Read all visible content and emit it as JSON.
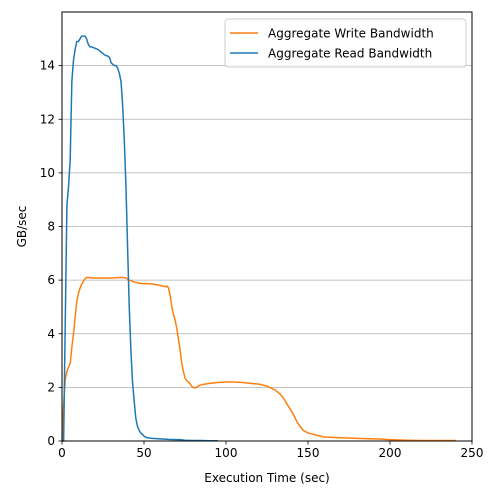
{
  "chart_data": {
    "type": "line",
    "title": "",
    "xlabel": "Execution Time (sec)",
    "ylabel": "GB/sec",
    "xlim": [
      0,
      250
    ],
    "ylim": [
      0,
      16
    ],
    "x_ticks": [
      0,
      50,
      100,
      150,
      200,
      250
    ],
    "y_ticks": [
      0,
      2,
      4,
      6,
      8,
      10,
      12,
      14
    ],
    "grid": "horizontal",
    "legend_position": "top-right",
    "series": [
      {
        "name": "Aggregate Write Bandwidth",
        "color": "#ff7f0e",
        "x": [
          0,
          1,
          2,
          3,
          5,
          6,
          7,
          8,
          9,
          10,
          11,
          12,
          13,
          14,
          15,
          16,
          17,
          18,
          20,
          25,
          30,
          35,
          38,
          40,
          41,
          42,
          43,
          44,
          45,
          47,
          50,
          55,
          60,
          63,
          64,
          65,
          66,
          67,
          68,
          69,
          70,
          71,
          72,
          73,
          74,
          75,
          76,
          77,
          78,
          79,
          80,
          81,
          82,
          83,
          85,
          90,
          95,
          100,
          105,
          110,
          115,
          120,
          125,
          130,
          133,
          135,
          137,
          139,
          141,
          143,
          145,
          147,
          150,
          155,
          160,
          170,
          180,
          190,
          195,
          200,
          210,
          220,
          230,
          240
        ],
        "y": [
          0,
          1.4,
          2.3,
          2.6,
          2.9,
          3.5,
          4.0,
          4.6,
          5.2,
          5.5,
          5.7,
          5.85,
          5.95,
          6.05,
          6.1,
          6.1,
          6.1,
          6.08,
          6.08,
          6.08,
          6.08,
          6.1,
          6.1,
          6.05,
          6.0,
          5.98,
          5.95,
          5.93,
          5.92,
          5.88,
          5.87,
          5.86,
          5.8,
          5.75,
          5.78,
          5.7,
          5.4,
          5.0,
          4.7,
          4.5,
          4.2,
          3.8,
          3.4,
          2.9,
          2.6,
          2.35,
          2.25,
          2.2,
          2.15,
          2.05,
          2.0,
          1.98,
          2.0,
          2.05,
          2.1,
          2.15,
          2.18,
          2.2,
          2.2,
          2.18,
          2.15,
          2.12,
          2.05,
          1.9,
          1.75,
          1.6,
          1.4,
          1.2,
          1.0,
          0.75,
          0.55,
          0.4,
          0.3,
          0.22,
          0.15,
          0.12,
          0.1,
          0.08,
          0.07,
          0.05,
          0.03,
          0.02,
          0.02,
          0.02
        ]
      },
      {
        "name": "Aggregate Read Bandwidth",
        "color": "#1f77b4",
        "x": [
          0,
          1,
          2,
          3,
          4,
          5,
          6,
          7,
          8,
          9,
          10,
          11,
          12,
          13,
          14,
          15,
          16,
          17,
          18,
          20,
          22,
          24,
          26,
          28,
          29,
          30,
          31,
          32,
          33,
          34,
          35,
          36,
          37,
          38,
          39,
          40,
          41,
          42,
          43,
          44,
          45,
          46,
          47,
          48,
          49,
          50,
          52,
          55,
          60,
          65,
          70,
          72,
          75,
          80,
          85,
          90,
          95
        ],
        "y": [
          0,
          0,
          4.5,
          8.8,
          9.5,
          10.5,
          13.4,
          14.2,
          14.6,
          14.9,
          14.9,
          15.0,
          15.1,
          15.1,
          15.1,
          15.0,
          14.8,
          14.7,
          14.7,
          14.65,
          14.6,
          14.5,
          14.4,
          14.35,
          14.3,
          14.1,
          14.05,
          14.0,
          14.0,
          13.9,
          13.7,
          13.4,
          12.5,
          11.2,
          9.5,
          7.2,
          5.0,
          3.4,
          2.2,
          1.5,
          0.85,
          0.55,
          0.4,
          0.3,
          0.25,
          0.18,
          0.12,
          0.1,
          0.08,
          0.06,
          0.05,
          0.05,
          0.03,
          0.02,
          0.02,
          0.01,
          0.01
        ]
      }
    ]
  }
}
